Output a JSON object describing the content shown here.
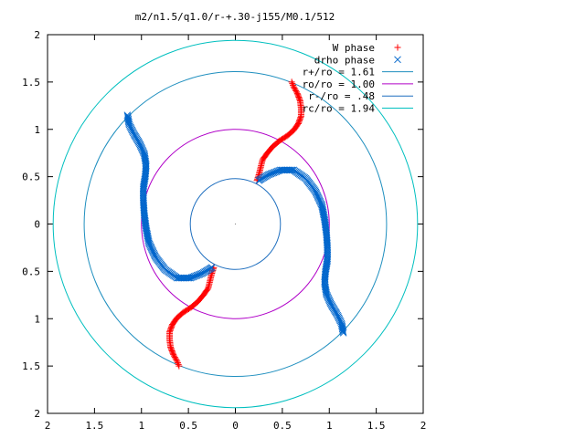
{
  "chart_data": {
    "type": "scatter",
    "title": "m2/n1.5/q1.0/r-+.30-j155/M0.1/512",
    "xlabel": "",
    "ylabel": "",
    "xlim": [
      -2,
      2
    ],
    "ylim": [
      -2,
      2
    ],
    "x_ticks": [
      -2,
      -1.5,
      -1,
      -0.5,
      0,
      0.5,
      1,
      1.5,
      2
    ],
    "y_ticks": [
      -2,
      -1.5,
      -1,
      -0.5,
      0,
      0.5,
      1,
      1.5,
      2
    ],
    "x_tick_labels": [
      "2",
      "1.5",
      "1",
      "0.5",
      "0",
      "0.5",
      "1",
      "1.5",
      "2"
    ],
    "y_tick_labels": [
      "2",
      "1.5",
      "1",
      "0.5",
      "0",
      "0.5",
      "1",
      "1.5",
      "2"
    ],
    "grid": false,
    "legend_position": "top-right",
    "series": [
      {
        "name": "W phase",
        "marker": "plus",
        "color": "#ff0000",
        "branches": [
          [
            [
              0.6,
              1.5
            ],
            [
              0.62,
              1.45
            ],
            [
              0.66,
              1.38
            ],
            [
              0.69,
              1.3
            ],
            [
              0.7,
              1.22
            ],
            [
              0.7,
              1.14
            ],
            [
              0.67,
              1.06
            ],
            [
              0.62,
              0.99
            ],
            [
              0.55,
              0.93
            ],
            [
              0.47,
              0.88
            ],
            [
              0.4,
              0.82
            ],
            [
              0.34,
              0.75
            ],
            [
              0.29,
              0.68
            ],
            [
              0.27,
              0.6
            ],
            [
              0.25,
              0.52
            ],
            [
              0.23,
              0.46
            ]
          ],
          [
            [
              -0.6,
              -1.5
            ],
            [
              -0.62,
              -1.45
            ],
            [
              -0.66,
              -1.38
            ],
            [
              -0.69,
              -1.3
            ],
            [
              -0.7,
              -1.22
            ],
            [
              -0.7,
              -1.14
            ],
            [
              -0.67,
              -1.06
            ],
            [
              -0.62,
              -0.99
            ],
            [
              -0.55,
              -0.93
            ],
            [
              -0.47,
              -0.88
            ],
            [
              -0.4,
              -0.82
            ],
            [
              -0.34,
              -0.75
            ],
            [
              -0.29,
              -0.68
            ],
            [
              -0.27,
              -0.6
            ],
            [
              -0.25,
              -0.52
            ],
            [
              -0.23,
              -0.46
            ]
          ]
        ]
      },
      {
        "name": "drho phase",
        "marker": "cross",
        "color": "#0066cc",
        "branches": [
          [
            [
              -1.15,
              1.15
            ],
            [
              -1.13,
              1.05
            ],
            [
              -1.08,
              0.95
            ],
            [
              -1.02,
              0.85
            ],
            [
              -0.97,
              0.74
            ],
            [
              -0.95,
              0.62
            ],
            [
              -0.96,
              0.5
            ],
            [
              -0.98,
              0.38
            ],
            [
              -0.98,
              0.25
            ],
            [
              -0.97,
              0.1
            ],
            [
              -0.95,
              -0.05
            ],
            [
              -0.92,
              -0.2
            ],
            [
              -0.85,
              -0.35
            ],
            [
              -0.75,
              -0.48
            ],
            [
              -0.62,
              -0.57
            ],
            [
              -0.48,
              -0.57
            ],
            [
              -0.35,
              -0.52
            ],
            [
              -0.25,
              -0.46
            ]
          ],
          [
            [
              1.15,
              -1.15
            ],
            [
              1.13,
              -1.05
            ],
            [
              1.08,
              -0.95
            ],
            [
              1.02,
              -0.85
            ],
            [
              0.97,
              -0.74
            ],
            [
              0.95,
              -0.62
            ],
            [
              0.96,
              -0.5
            ],
            [
              0.98,
              -0.38
            ],
            [
              0.98,
              -0.25
            ],
            [
              0.97,
              -0.1
            ],
            [
              0.95,
              0.05
            ],
            [
              0.92,
              0.2
            ],
            [
              0.85,
              0.35
            ],
            [
              0.75,
              0.48
            ],
            [
              0.62,
              0.57
            ],
            [
              0.48,
              0.57
            ],
            [
              0.35,
              0.52
            ],
            [
              0.25,
              0.46
            ]
          ]
        ]
      },
      {
        "name": "r+/ro = 1.61",
        "type": "circle",
        "radius": 1.61,
        "color": "#1f8fbf"
      },
      {
        "name": "ro/ro = 1.00",
        "type": "circle",
        "radius": 1.0,
        "color": "#b000c8"
      },
      {
        "name": "r-/ro = .48",
        "type": "circle",
        "radius": 0.48,
        "color": "#1f6fbf"
      },
      {
        "name": "rc/ro = 1.94",
        "type": "circle",
        "radius": 1.94,
        "color": "#00bfbf"
      }
    ]
  }
}
